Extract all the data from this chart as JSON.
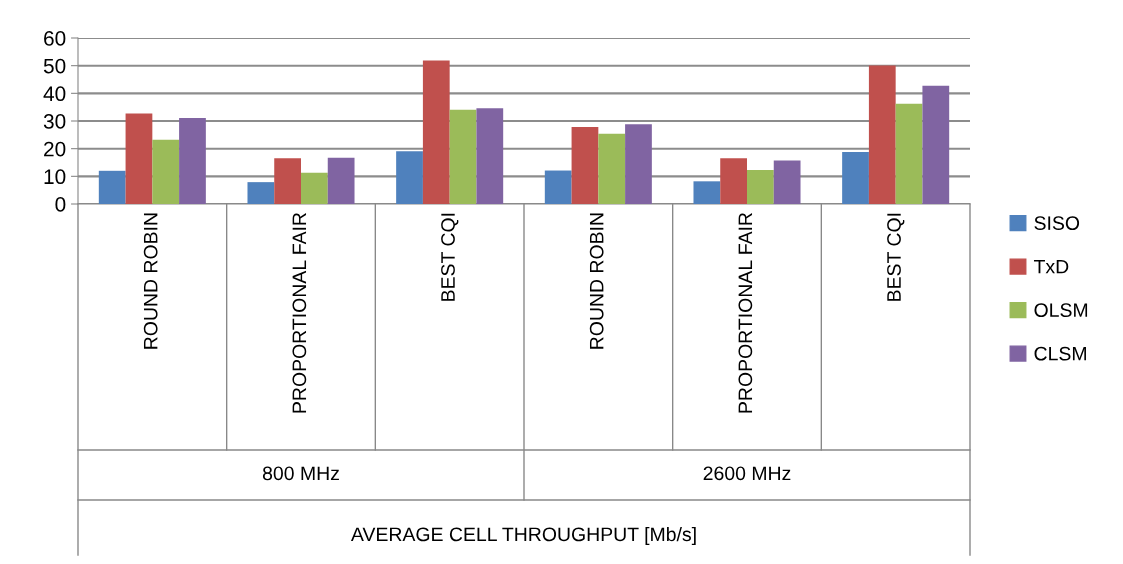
{
  "chart_data": {
    "type": "bar",
    "categories": [
      "ROUND ROBIN",
      "PROPORTIONAL FAIR",
      "BEST CQI",
      "ROUND ROBIN",
      "PROPORTIONAL FAIR",
      "BEST CQI"
    ],
    "annotations": [
      "800 MHz",
      "2600 MHz",
      "AVERAGE CELL THROUGHPUT [Mb/s]"
    ],
    "series": [
      {
        "name": "SISO",
        "color": "#4f81bd",
        "values": [
          12.0,
          7.9,
          19.1,
          12.1,
          8.2,
          18.8
        ]
      },
      {
        "name": "TxD",
        "color": "#c0504d",
        "values": [
          32.7,
          16.5,
          51.9,
          27.8,
          16.5,
          50.1
        ]
      },
      {
        "name": "OLSM",
        "color": "#9bbb59",
        "values": [
          23.2,
          11.3,
          34.1,
          25.4,
          12.3,
          36.2
        ]
      },
      {
        "name": "CLSM",
        "color": "#8064a2",
        "values": [
          31.1,
          16.7,
          34.6,
          28.8,
          15.7,
          42.7
        ]
      }
    ],
    "ylim": [
      0,
      60
    ],
    "yticks": [
      0,
      10,
      20,
      30,
      40,
      50,
      60
    ],
    "grid": "y",
    "legend": "right"
  }
}
